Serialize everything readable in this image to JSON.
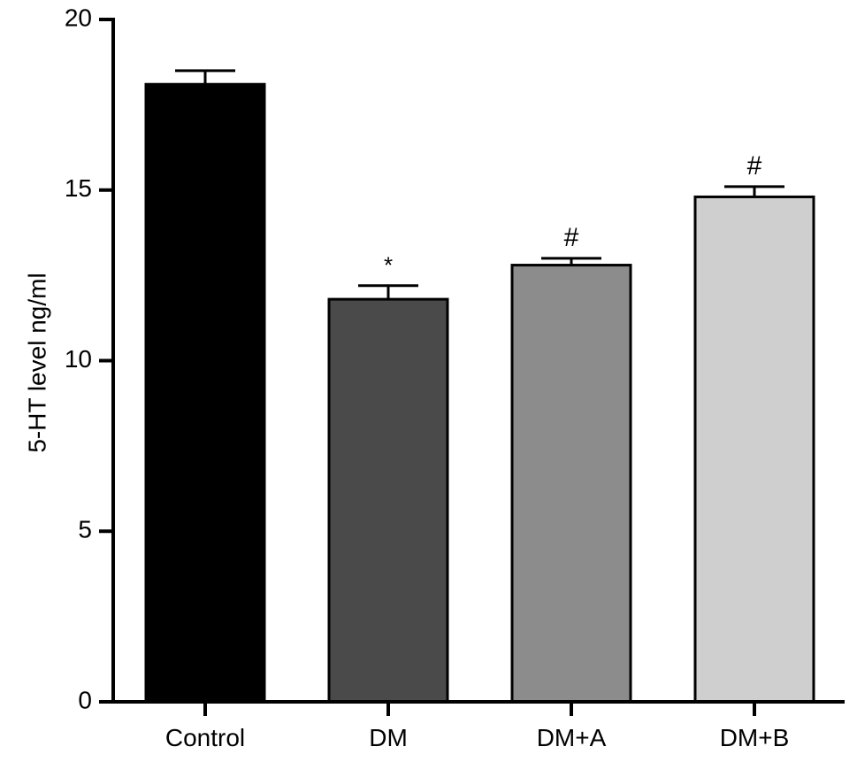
{
  "chart_data": {
    "type": "bar",
    "title": "",
    "xlabel": "",
    "ylabel": "5-HT level ng/ml",
    "ylim": [
      0,
      20
    ],
    "yticks": [
      0,
      5,
      10,
      15,
      20
    ],
    "categories": [
      "Control",
      "DM",
      "DM+A",
      "DM+B"
    ],
    "values": [
      18.1,
      11.8,
      12.8,
      14.8
    ],
    "errors": [
      0.4,
      0.4,
      0.2,
      0.3
    ],
    "significance": [
      "",
      "*",
      "#",
      "#"
    ],
    "colors": [
      "#000000",
      "#4a4a4a",
      "#8c8c8c",
      "#cfcfcf"
    ],
    "grid": false,
    "legend": "none"
  }
}
